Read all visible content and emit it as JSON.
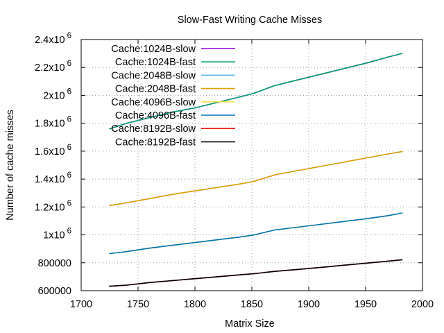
{
  "chart_data": {
    "type": "line",
    "title": "Slow-Fast Writing Cache Misses",
    "xlabel": "Matrix Size",
    "ylabel": "Number of cache misses",
    "xlim": [
      1700,
      2000
    ],
    "ylim": [
      600000,
      2400000
    ],
    "grid": true,
    "legend_position": "top-left",
    "x_ticks": [
      {
        "value": 1700,
        "label": "1700"
      },
      {
        "value": 1750,
        "label": "1750"
      },
      {
        "value": 1800,
        "label": "1800"
      },
      {
        "value": 1850,
        "label": "1850"
      },
      {
        "value": 1900,
        "label": "1900"
      },
      {
        "value": 1950,
        "label": "1950"
      },
      {
        "value": 2000,
        "label": "2000"
      }
    ],
    "y_ticks": [
      {
        "value": 600000,
        "mantissa": "600000",
        "exp": ""
      },
      {
        "value": 800000,
        "mantissa": "800000",
        "exp": ""
      },
      {
        "value": 1000000,
        "mantissa": "1x10",
        "exp": "6"
      },
      {
        "value": 1200000,
        "mantissa": "1.2x10",
        "exp": "6"
      },
      {
        "value": 1400000,
        "mantissa": "1.4x10",
        "exp": "6"
      },
      {
        "value": 1600000,
        "mantissa": "1.6x10",
        "exp": "6"
      },
      {
        "value": 1800000,
        "mantissa": "1.8x10",
        "exp": "6"
      },
      {
        "value": 2000000,
        "mantissa": "2x10",
        "exp": "6"
      },
      {
        "value": 2200000,
        "mantissa": "2.2x10",
        "exp": "6"
      },
      {
        "value": 2400000,
        "mantissa": "2.4x10",
        "exp": "6"
      }
    ],
    "x": [
      1725,
      1740,
      1760,
      1780,
      1800,
      1820,
      1840,
      1852,
      1870,
      1890,
      1910,
      1930,
      1950,
      1970,
      1982
    ],
    "series": [
      {
        "name": "Cache:1024B-slow",
        "color": "#9400d3",
        "values": [
          1760000,
          1800000,
          1840000,
          1880000,
          1910000,
          1950000,
          1990000,
          2015000,
          2070000,
          2110000,
          2150000,
          2190000,
          2230000,
          2275000,
          2300000
        ]
      },
      {
        "name": "Cache:1024B-fast",
        "color": "#009e73",
        "values": [
          1760000,
          1800000,
          1840000,
          1880000,
          1910000,
          1950000,
          1990000,
          2015000,
          2070000,
          2110000,
          2150000,
          2190000,
          2230000,
          2275000,
          2300000
        ]
      },
      {
        "name": "Cache:2048B-slow",
        "color": "#56b4e9",
        "values": [
          1210000,
          1230000,
          1260000,
          1290000,
          1315000,
          1340000,
          1365000,
          1383000,
          1430000,
          1460000,
          1490000,
          1520000,
          1550000,
          1580000,
          1597000
        ]
      },
      {
        "name": "Cache:2048B-fast",
        "color": "#e69f00",
        "values": [
          1210000,
          1230000,
          1260000,
          1290000,
          1315000,
          1340000,
          1365000,
          1383000,
          1430000,
          1460000,
          1490000,
          1520000,
          1550000,
          1580000,
          1597000
        ]
      },
      {
        "name": "Cache:4096B-slow",
        "color": "#f0e442",
        "values": [
          866000,
          880000,
          905000,
          925000,
          945000,
          965000,
          985000,
          1000000,
          1035000,
          1055000,
          1075000,
          1095000,
          1115000,
          1138000,
          1157000
        ]
      },
      {
        "name": "Cache:4096B-fast",
        "color": "#0072b2",
        "values": [
          866000,
          880000,
          905000,
          925000,
          945000,
          965000,
          985000,
          1000000,
          1035000,
          1055000,
          1075000,
          1095000,
          1115000,
          1138000,
          1157000
        ]
      },
      {
        "name": "Cache:8192B-slow",
        "color": "#e51e10",
        "values": [
          632000,
          640000,
          658000,
          672000,
          686000,
          700000,
          714000,
          722000,
          738000,
          752000,
          766000,
          782000,
          797000,
          812000,
          822000
        ]
      },
      {
        "name": "Cache:8192B-fast",
        "color": "#000000",
        "values": [
          632000,
          640000,
          658000,
          672000,
          686000,
          700000,
          714000,
          722000,
          738000,
          752000,
          766000,
          782000,
          797000,
          812000,
          822000
        ]
      }
    ]
  }
}
